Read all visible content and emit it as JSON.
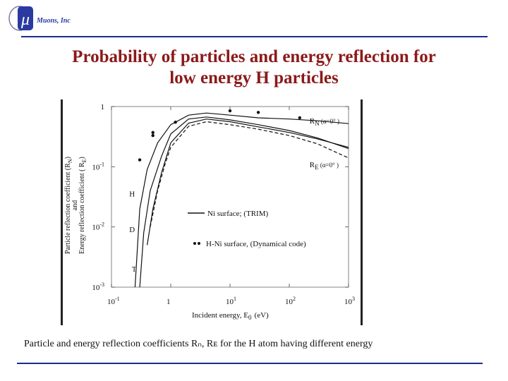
{
  "logo": {
    "symbol": "μ",
    "text": "Muons, Inc."
  },
  "slide": {
    "title_line1": "Probability of particles and energy reflection for",
    "title_line2": "low energy H particles",
    "caption": "Particle and energy reflection coefficients Rₙ, Rᴇ for the H atom having different energy"
  },
  "chart_data": {
    "type": "line",
    "x_scale": "log",
    "y_scale": "log",
    "xlim": [
      0.1,
      1000
    ],
    "ylim": [
      0.001,
      1
    ],
    "x_ticks": [
      {
        "base": "10",
        "exp": "-1"
      },
      {
        "base": "1",
        "exp": ""
      },
      {
        "base": "10",
        "exp": "1"
      },
      {
        "base": "10",
        "exp": "2"
      },
      {
        "base": "10",
        "exp": "3"
      }
    ],
    "y_ticks": [
      {
        "base": "1",
        "exp": ""
      },
      {
        "base": "10",
        "exp": "-1"
      },
      {
        "base": "10",
        "exp": "-2"
      },
      {
        "base": "10",
        "exp": "-3"
      }
    ],
    "xlabel": {
      "text": "Incident energy, E",
      "sub": "0",
      "unit": "(eV)"
    },
    "ylabel_line1": "Particle reflection coefficient  (R",
    "ylabel_line1_sub": "N",
    "ylabel_line1_end": ")",
    "ylabel_line2": "and",
    "ylabel_line3": "Energy reflection coefficient  ( R",
    "ylabel_line3_sub": "E",
    "ylabel_line3_end": ")",
    "annotations": [
      {
        "text": "R",
        "sub": "N",
        "rest": " (α=0° )",
        "x": 220,
        "y": 0.52
      },
      {
        "text": "R",
        "sub": "E",
        "rest": " (α=0° )",
        "x": 220,
        "y": 0.098
      }
    ],
    "isotope_labels": [
      {
        "text": "H",
        "x": 0.2,
        "y": 0.032
      },
      {
        "text": "D",
        "x": 0.2,
        "y": 0.0082
      },
      {
        "text": "T",
        "x": 0.22,
        "y": 0.0018
      }
    ],
    "legend": {
      "placement": "center-right",
      "line_label": "Ni surface;  (TRIM)",
      "dots_label": "H-Ni surface, (Dynamical code)"
    },
    "series": [
      {
        "style": "solid",
        "points": [
          [
            0.25,
            0.001
          ],
          [
            0.3,
            0.02
          ],
          [
            0.4,
            0.09
          ],
          [
            0.6,
            0.25
          ],
          [
            1,
            0.5
          ],
          [
            2,
            0.72
          ],
          [
            4,
            0.78
          ],
          [
            10,
            0.72
          ],
          [
            30,
            0.65
          ],
          [
            100,
            0.62
          ],
          [
            300,
            0.58
          ],
          [
            1000,
            0.52
          ]
        ]
      },
      {
        "style": "solid",
        "points": [
          [
            0.3,
            0.001
          ],
          [
            0.35,
            0.008
          ],
          [
            0.45,
            0.04
          ],
          [
            0.7,
            0.15
          ],
          [
            1,
            0.35
          ],
          [
            2,
            0.62
          ],
          [
            4,
            0.67
          ],
          [
            10,
            0.6
          ],
          [
            30,
            0.5
          ],
          [
            100,
            0.4
          ],
          [
            300,
            0.3
          ],
          [
            1000,
            0.2
          ]
        ]
      },
      {
        "style": "solid",
        "points": [
          [
            0.4,
            0.005
          ],
          [
            0.5,
            0.02
          ],
          [
            0.7,
            0.08
          ],
          [
            1,
            0.25
          ],
          [
            2,
            0.53
          ],
          [
            4,
            0.62
          ],
          [
            10,
            0.56
          ],
          [
            30,
            0.46
          ],
          [
            100,
            0.37
          ],
          [
            300,
            0.29
          ],
          [
            1000,
            0.21
          ]
        ]
      },
      {
        "style": "dashed",
        "points": [
          [
            0.45,
            0.01
          ],
          [
            0.6,
            0.04
          ],
          [
            0.8,
            0.11
          ],
          [
            1,
            0.21
          ],
          [
            2,
            0.47
          ],
          [
            4,
            0.56
          ],
          [
            10,
            0.5
          ],
          [
            30,
            0.42
          ],
          [
            100,
            0.33
          ],
          [
            300,
            0.24
          ],
          [
            1000,
            0.14
          ]
        ]
      }
    ],
    "dots": [
      [
        0.3,
        0.13
      ],
      [
        0.5,
        0.33
      ],
      [
        0.5,
        0.37
      ],
      [
        1.2,
        0.55
      ],
      [
        10,
        0.85
      ],
      [
        30,
        0.8
      ],
      [
        150,
        0.65
      ]
    ]
  }
}
